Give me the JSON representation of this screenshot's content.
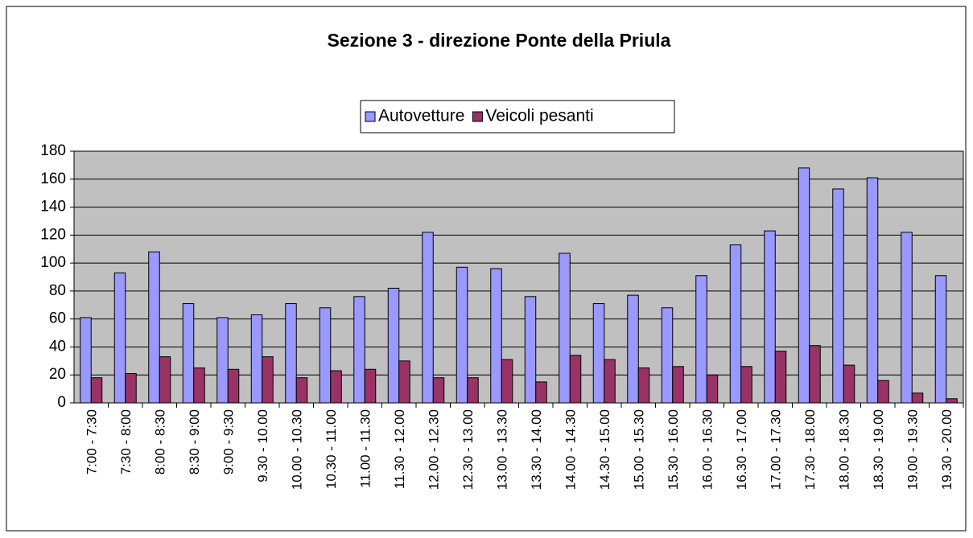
{
  "chart_data": {
    "type": "bar",
    "title": "Sezione 3 - direzione Ponte della Priula",
    "categories": [
      "7:00 - 7:30",
      "7:30 - 8:00",
      "8:00 - 8:30",
      "8:30 - 9:00",
      "9:00 - 9:30",
      "9.30 - 10.00",
      "10.00 - 10.30",
      "10.30 - 11.00",
      "11.00 - 11.30",
      "11.30 - 12.00",
      "12.00 - 12.30",
      "12.30 - 13.00",
      "13.00 - 13.30",
      "13.30 - 14.00",
      "14.00 - 14.30",
      "14.30 - 15.00",
      "15.00 - 15.30",
      "15.30 - 16.00",
      "16.00 - 16.30",
      "16.30 - 17.00",
      "17.00 - 17.30",
      "17.30 - 18.00",
      "18.00 - 18.30",
      "18.30 - 19.00",
      "19.00 - 19.30",
      "19.30 - 20.00"
    ],
    "series": [
      {
        "name": "Autovetture",
        "color": "#9999ff",
        "values": [
          61,
          93,
          108,
          71,
          61,
          63,
          71,
          68,
          76,
          82,
          122,
          97,
          96,
          76,
          107,
          71,
          77,
          68,
          91,
          113,
          123,
          168,
          153,
          161,
          122,
          91
        ]
      },
      {
        "name": "Veicoli pesanti",
        "color": "#993366",
        "values": [
          18,
          21,
          33,
          25,
          24,
          33,
          18,
          23,
          24,
          30,
          18,
          18,
          31,
          15,
          34,
          31,
          25,
          26,
          20,
          26,
          37,
          41,
          27,
          16,
          7,
          3
        ]
      }
    ],
    "ylim": [
      0,
      180
    ],
    "yticks": [
      0,
      20,
      40,
      60,
      80,
      100,
      120,
      140,
      160,
      180
    ],
    "grid": true,
    "plot_background": "#c0c0c0"
  }
}
